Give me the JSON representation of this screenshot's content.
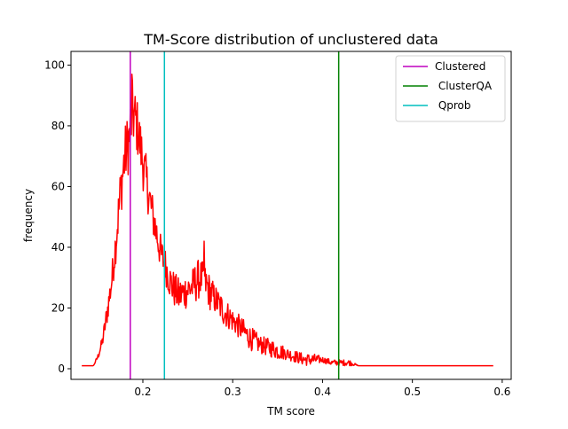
{
  "chart_data": {
    "type": "line",
    "title": "TM-Score distribution of unclustered data",
    "xlabel": "TM score",
    "ylabel": "frequency",
    "xlim": [
      0.12,
      0.61
    ],
    "ylim": [
      -3.5,
      104.5
    ],
    "xticks": [
      {
        "value": 0.2,
        "label": "0.2"
      },
      {
        "value": 0.3,
        "label": "0.3"
      },
      {
        "value": 0.4,
        "label": "0.4"
      },
      {
        "value": 0.5,
        "label": "0.5"
      },
      {
        "value": 0.6,
        "label": "0.6"
      }
    ],
    "yticks": [
      {
        "value": 0,
        "label": "0"
      },
      {
        "value": 20,
        "label": "20"
      },
      {
        "value": 40,
        "label": "40"
      },
      {
        "value": 60,
        "label": "60"
      },
      {
        "value": 80,
        "label": "80"
      },
      {
        "value": 100,
        "label": "100"
      }
    ],
    "grid": false,
    "legend_position": "top-right",
    "series": [
      {
        "kind": "histogram-line",
        "color": "#ff0000",
        "x": [
          0.132,
          0.145,
          0.15,
          0.155,
          0.16,
          0.165,
          0.17,
          0.175,
          0.18,
          0.185,
          0.188,
          0.192,
          0.196,
          0.2,
          0.205,
          0.21,
          0.215,
          0.22,
          0.225,
          0.23,
          0.235,
          0.24,
          0.245,
          0.25,
          0.255,
          0.26,
          0.265,
          0.27,
          0.275,
          0.28,
          0.285,
          0.29,
          0.3,
          0.31,
          0.32,
          0.33,
          0.34,
          0.35,
          0.36,
          0.37,
          0.38,
          0.39,
          0.4,
          0.41,
          0.42,
          0.43,
          0.44,
          0.45,
          0.59
        ],
        "y": [
          1,
          1,
          4,
          9,
          18,
          28,
          42,
          58,
          70,
          76,
          84,
          82,
          76,
          68,
          60,
          52,
          45,
          38,
          34,
          29,
          26,
          24,
          25,
          26,
          27,
          29,
          30,
          28,
          25,
          23,
          21,
          19,
          16,
          13,
          10,
          8,
          7,
          6,
          5,
          4,
          3,
          3,
          3,
          2,
          2,
          2,
          1,
          1,
          1
        ],
        "noise": [
          0,
          0,
          1,
          2,
          4,
          5,
          7,
          9,
          10,
          11,
          11,
          10,
          9,
          9,
          8,
          7,
          7,
          6,
          6,
          6,
          6,
          6,
          6,
          6,
          6,
          7,
          6,
          6,
          6,
          5,
          5,
          5,
          4,
          4,
          4,
          3,
          3,
          3,
          2,
          2,
          2,
          2,
          1,
          1,
          1,
          1,
          0,
          0,
          0
        ],
        "peak": [
          {
            "x": 0.188,
            "y": 97
          },
          {
            "x": 0.268,
            "y": 42
          }
        ]
      }
    ],
    "vlines": [
      {
        "name": "Clustered",
        "x": 0.186,
        "color": "#bf00bf"
      },
      {
        "name": " ClusterQA",
        "x": 0.418,
        "color": "#008000"
      },
      {
        "name": " Qprob",
        "x": 0.224,
        "color": "#00bfbf"
      }
    ]
  }
}
